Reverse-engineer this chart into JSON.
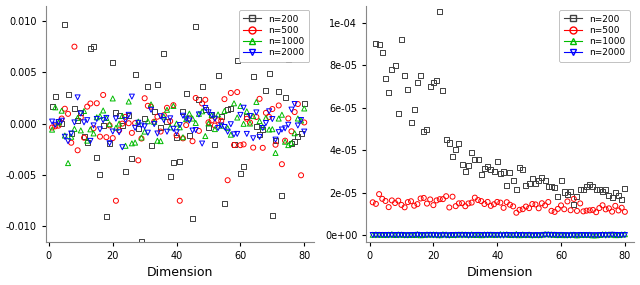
{
  "n_values": [
    200,
    500,
    1000,
    2000
  ],
  "colors": [
    "#404040",
    "#FF0000",
    "#00BB00",
    "#0000FF"
  ],
  "markers": [
    "s",
    "o",
    "^",
    "v"
  ],
  "x_range": [
    1,
    80
  ],
  "left_ylim": [
    -0.0115,
    0.0115
  ],
  "right_ylim": [
    -3e-06,
    0.000108
  ],
  "xlabel": "Dimension",
  "legend_labels": [
    "n=200",
    "n=500",
    "n=1000",
    "n=2000"
  ],
  "left_yticks": [
    -0.01,
    -0.005,
    0.0,
    0.005,
    0.01
  ],
  "left_yticklabels": [
    "-0.010",
    "-0.005",
    "0.000",
    "0.005",
    "0.010"
  ],
  "right_yticks": [
    0,
    2e-05,
    4e-05,
    6e-05,
    8e-05,
    0.0001
  ],
  "right_yticklabels": [
    "0e+00",
    "2e-05",
    "4e-05",
    "6e-05",
    "8e-05",
    "1e-04"
  ],
  "xticks": [
    0,
    20,
    40,
    60,
    80
  ]
}
